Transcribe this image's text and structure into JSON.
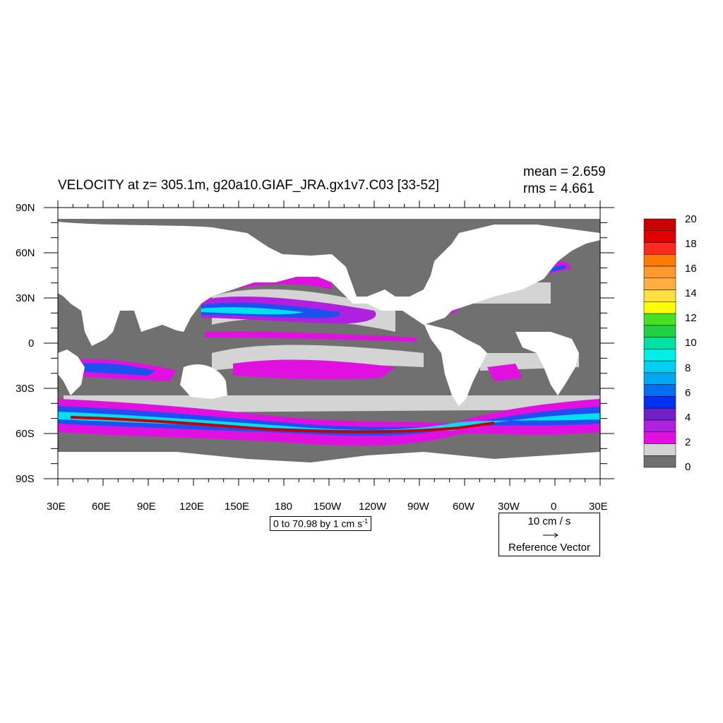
{
  "title": "VELOCITY at z= 305.1m, g20a10.GIAF_JRA.gx1v7.C03 [33-52]",
  "stats": {
    "mean": "mean = 2.659",
    "rms": "rms = 4.661"
  },
  "lat_labels": [
    "90N",
    "60N",
    "30N",
    "0",
    "30S",
    "60S",
    "90S"
  ],
  "lon_labels": [
    "30E",
    "60E",
    "90E",
    "120E",
    "150E",
    "180",
    "150W",
    "120W",
    "90W",
    "60W",
    "30W",
    "0",
    "30E"
  ],
  "contour_info": {
    "text": "0 to 70.98 by 1 cm s",
    "exponent": "-1"
  },
  "reference_vector": {
    "magnitude": "10 cm / s",
    "label": "Reference Vector"
  },
  "colorbar": {
    "labels": [
      "20",
      "18",
      "16",
      "14",
      "12",
      "10",
      "8",
      "6",
      "4",
      "2",
      "0"
    ],
    "colors_top_to_bottom": [
      "#c80000",
      "#e00000",
      "#ff2a1e",
      "#ff7a00",
      "#ff9a30",
      "#ffb040",
      "#ffe040",
      "#ffff00",
      "#48e020",
      "#20d040",
      "#00e0a0",
      "#00f0e8",
      "#00d0f0",
      "#00a8f0",
      "#0070f0",
      "#0030f0",
      "#7020c8",
      "#b020e0",
      "#e010e0",
      "#d4d4d4",
      "#707070"
    ]
  },
  "colors": {
    "land": "#ffffff",
    "ocean_low": "#707070",
    "ocean_light": "#d4d4d4",
    "magenta": "#e010e0",
    "blue": "#1e50f0",
    "cyan": "#00e0f0",
    "red": "#c80000"
  }
}
